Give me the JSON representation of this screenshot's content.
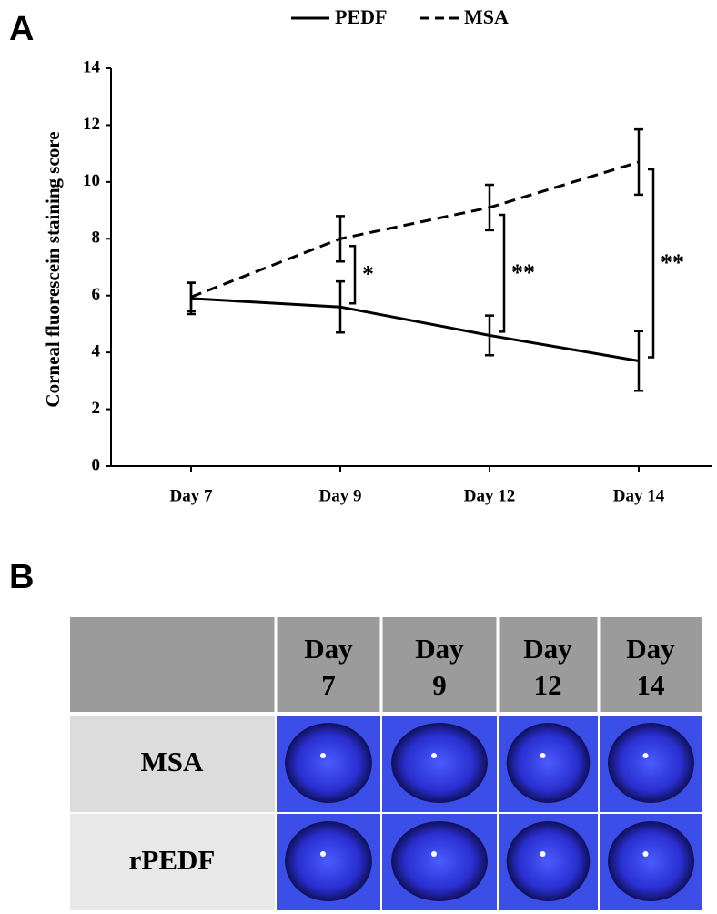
{
  "panel_labels": [
    "A",
    "B"
  ],
  "chart_data": {
    "type": "line",
    "y_label": "Corneal fluorescein staining score",
    "categories": [
      "Day 7",
      "Day 9",
      "Day 12",
      "Day 14"
    ],
    "series": [
      {
        "name": "PEDF",
        "color": "#000000",
        "dash": "solid",
        "values": [
          5.9,
          5.6,
          4.6,
          3.7
        ],
        "errors": [
          0.55,
          0.9,
          0.7,
          1.05
        ]
      },
      {
        "name": "MSA",
        "color": "#000000",
        "dash": "dashed",
        "values": [
          5.95,
          8.0,
          9.1,
          10.7
        ],
        "errors": [
          0.5,
          0.8,
          0.8,
          1.15
        ]
      }
    ],
    "significance": [
      null,
      "*",
      "**",
      "**"
    ],
    "ylim": [
      0,
      14
    ],
    "yticks": [
      0,
      2,
      4,
      6,
      8,
      10,
      12,
      14
    ],
    "legend": "top",
    "grid": false
  },
  "table": {
    "headers": [
      [
        "Day",
        "7"
      ],
      [
        "Day",
        "9"
      ],
      [
        "Day",
        "12"
      ],
      [
        "Day",
        "14"
      ]
    ],
    "rows": [
      "MSA",
      "rPEDF"
    ]
  }
}
